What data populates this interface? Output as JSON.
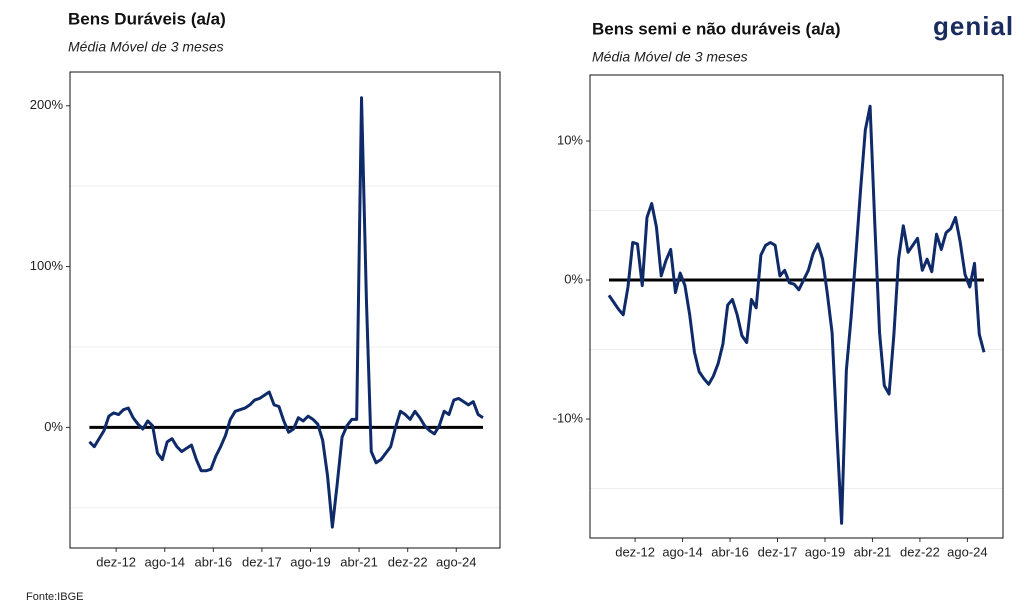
{
  "chart_data": [
    {
      "type": "line",
      "title": "Bens Duráveis (a/a)",
      "subtitle": "Média Móvel de 3 meses",
      "x": [
        "2012-01",
        "2012-03",
        "2012-05",
        "2012-07",
        "2012-09",
        "2012-11",
        "2013-01",
        "2013-03",
        "2013-05",
        "2013-07",
        "2013-09",
        "2013-11",
        "2014-01",
        "2014-03",
        "2014-05",
        "2014-07",
        "2014-09",
        "2014-11",
        "2015-01",
        "2015-03",
        "2015-05",
        "2015-07",
        "2015-09",
        "2015-11",
        "2016-01",
        "2016-03",
        "2016-05",
        "2016-07",
        "2016-09",
        "2016-11",
        "2017-01",
        "2017-03",
        "2017-05",
        "2017-07",
        "2017-09",
        "2017-11",
        "2018-01",
        "2018-03",
        "2018-05",
        "2018-07",
        "2018-09",
        "2018-11",
        "2019-01",
        "2019-03",
        "2019-05",
        "2019-07",
        "2019-09",
        "2019-11",
        "2020-01",
        "2020-03",
        "2020-05",
        "2020-07",
        "2020-09",
        "2020-11",
        "2021-01",
        "2021-03",
        "2021-05",
        "2021-07",
        "2021-09",
        "2021-11",
        "2022-01",
        "2022-03",
        "2022-05",
        "2022-07",
        "2022-09",
        "2022-11",
        "2023-01",
        "2023-03",
        "2023-05",
        "2023-07",
        "2023-09",
        "2023-11",
        "2024-01",
        "2024-03",
        "2024-05",
        "2024-07",
        "2024-09",
        "2024-11",
        "2025-01",
        "2025-03",
        "2025-05",
        "2025-07"
      ],
      "series": [
        {
          "color": "#0f2a68",
          "values": [
            -9,
            -12,
            -7,
            -2,
            7,
            9,
            8,
            11,
            12,
            6,
            2,
            -1,
            4,
            1,
            -16,
            -20,
            -9,
            -7,
            -12,
            -15,
            -13,
            -11,
            -20,
            -27,
            -27,
            -26,
            -18,
            -12,
            -5,
            5,
            10,
            11,
            12,
            14,
            17,
            18,
            20,
            22,
            14,
            13,
            4,
            -3,
            -1,
            6,
            4,
            7,
            5,
            2,
            -8,
            -30,
            -62,
            -35,
            -6,
            1,
            5,
            5,
            205,
            80,
            -15,
            -22,
            -20,
            -16,
            -12,
            0,
            10,
            8,
            5,
            10,
            6,
            1,
            -2,
            -4,
            1,
            10,
            8,
            17,
            18,
            16,
            14,
            16,
            8,
            6
          ]
        }
      ],
      "reference_line": 0,
      "xlim": [
        "2011-05",
        "2026-02"
      ],
      "xticks": [
        {
          "value": "2012-12",
          "label": "dez-12"
        },
        {
          "value": "2014-08",
          "label": "ago-14"
        },
        {
          "value": "2016-04",
          "label": "abr-16"
        },
        {
          "value": "2017-12",
          "label": "dez-17"
        },
        {
          "value": "2019-08",
          "label": "ago-19"
        },
        {
          "value": "2021-04",
          "label": "abr-21"
        },
        {
          "value": "2022-12",
          "label": "dez-22"
        },
        {
          "value": "2024-08",
          "label": "ago-24"
        }
      ],
      "ylim": [
        -75,
        221
      ],
      "yticks": [
        {
          "value": 0,
          "label": "0%"
        },
        {
          "value": 100,
          "label": "100%"
        },
        {
          "value": 200,
          "label": "200%"
        }
      ],
      "minor_yticks": [
        -50,
        50,
        150
      ],
      "grid": true
    },
    {
      "type": "line",
      "title": "Bens semi e não duráveis (a/a)",
      "subtitle": "Média Móvel de 3 meses",
      "x": [
        "2012-01",
        "2012-03",
        "2012-05",
        "2012-07",
        "2012-09",
        "2012-11",
        "2013-01",
        "2013-03",
        "2013-05",
        "2013-07",
        "2013-09",
        "2013-11",
        "2014-01",
        "2014-03",
        "2014-05",
        "2014-07",
        "2014-09",
        "2014-11",
        "2015-01",
        "2015-03",
        "2015-05",
        "2015-07",
        "2015-09",
        "2015-11",
        "2016-01",
        "2016-03",
        "2016-05",
        "2016-07",
        "2016-09",
        "2016-11",
        "2017-01",
        "2017-03",
        "2017-05",
        "2017-07",
        "2017-09",
        "2017-11",
        "2018-01",
        "2018-03",
        "2018-05",
        "2018-07",
        "2018-09",
        "2018-11",
        "2019-01",
        "2019-03",
        "2019-05",
        "2019-07",
        "2019-09",
        "2019-11",
        "2020-01",
        "2020-03",
        "2020-05",
        "2020-07",
        "2020-09",
        "2020-11",
        "2021-01",
        "2021-03",
        "2021-05",
        "2021-07",
        "2021-09",
        "2021-11",
        "2022-01",
        "2022-03",
        "2022-05",
        "2022-07",
        "2022-09",
        "2022-11",
        "2023-01",
        "2023-03",
        "2023-05",
        "2023-07",
        "2023-09",
        "2023-11",
        "2024-01",
        "2024-03",
        "2024-05",
        "2024-07",
        "2024-09",
        "2024-11",
        "2025-01",
        "2025-03"
      ],
      "series": [
        {
          "color": "#0f2a68",
          "values": [
            -1.1,
            -1.6,
            -2.1,
            -2.5,
            -0.5,
            2.7,
            2.6,
            -0.4,
            4.5,
            5.5,
            3.8,
            0.3,
            1.4,
            2.2,
            -0.9,
            0.5,
            -0.4,
            -2.5,
            -5.2,
            -6.6,
            -7.1,
            -7.5,
            -6.9,
            -6,
            -4.6,
            -1.8,
            -1.4,
            -2.5,
            -4,
            -4.5,
            -1.4,
            -2,
            1.8,
            2.5,
            2.7,
            2.5,
            0.3,
            0.7,
            -0.2,
            -0.3,
            -0.7,
            0,
            0.7,
            1.9,
            2.6,
            1.5,
            -1,
            -3.8,
            -11,
            -17.5,
            -6.5,
            -2.7,
            1.8,
            6.5,
            10.8,
            12.5,
            4,
            -3.8,
            -7.6,
            -8.2,
            -4,
            1.5,
            3.9,
            2,
            2.5,
            3,
            0.7,
            1.5,
            0.6,
            3.3,
            2.2,
            3.4,
            3.7,
            4.5,
            2.7,
            0.4,
            -0.5,
            1.2,
            -3.9,
            -5.2
          ]
        }
      ],
      "reference_line": 0,
      "xlim": [
        "2011-05",
        "2025-11"
      ],
      "xticks": [
        {
          "value": "2012-12",
          "label": "dez-12"
        },
        {
          "value": "2014-08",
          "label": "ago-14"
        },
        {
          "value": "2016-04",
          "label": "abr-16"
        },
        {
          "value": "2017-12",
          "label": "dez-17"
        },
        {
          "value": "2019-08",
          "label": "ago-19"
        },
        {
          "value": "2021-04",
          "label": "abr-21"
        },
        {
          "value": "2022-12",
          "label": "dez-22"
        },
        {
          "value": "2024-08",
          "label": "ago-24"
        }
      ],
      "ylim": [
        -18.56,
        14.75
      ],
      "yticks": [
        {
          "value": -10,
          "label": "-10%"
        },
        {
          "value": 0,
          "label": "0%"
        },
        {
          "value": 10,
          "label": "10%"
        }
      ],
      "minor_yticks": [
        -15,
        -5,
        5
      ],
      "grid": true
    }
  ],
  "logo": "genial",
  "source": "Fonte:IBGE"
}
